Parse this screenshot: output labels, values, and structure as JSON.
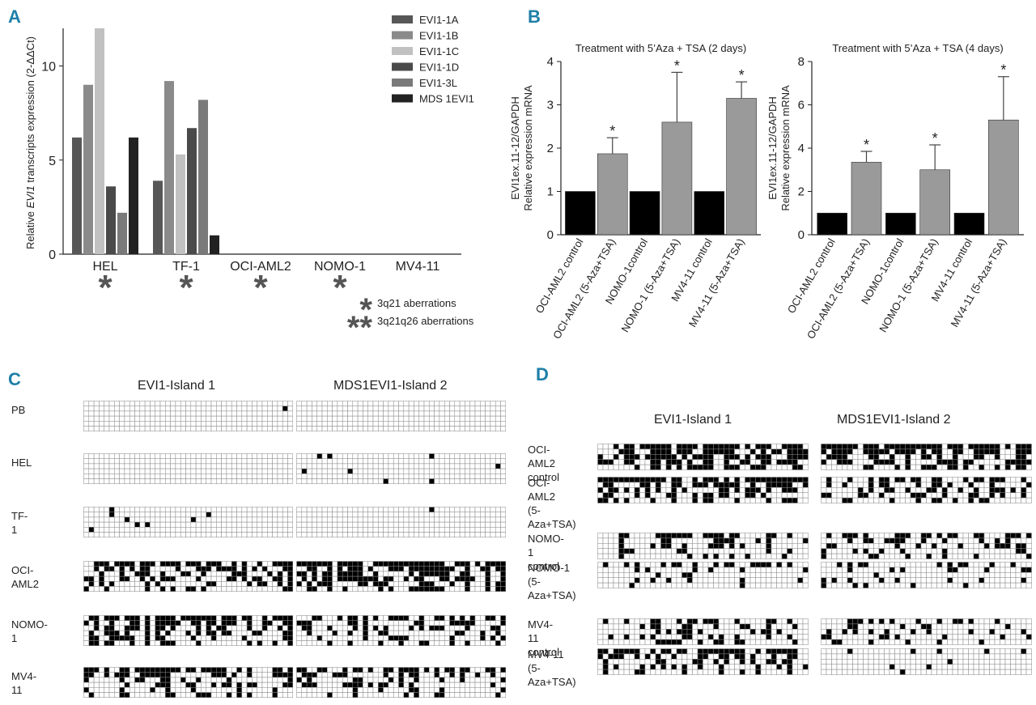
{
  "panels": {
    "a": "A",
    "b": "B",
    "c": "C",
    "d": "D"
  },
  "colors": {
    "accent": "#1e7fa8",
    "series": [
      "#575757",
      "#8a8a8a",
      "#c1c1c1",
      "#4a4a4a",
      "#7a7a7a",
      "#222222"
    ],
    "control_bar": "#000000",
    "treated_bar": "#9a9a9a",
    "asterisk": "#555555"
  },
  "chart_data": [
    {
      "id": "A",
      "type": "bar",
      "ylabel": "Relative EVI1 transcripts expression (2-ΔΔCt)",
      "ylabel_parts": [
        "Relative ",
        "EVI1",
        " transcripts expression (2-ΔΔCt)"
      ],
      "ylim": [
        0,
        12
      ],
      "yticks": [
        0,
        5,
        10
      ],
      "categories": [
        "HEL",
        "TF-1",
        "OCI-AML2",
        "NOMO-1",
        "MV4-11"
      ],
      "series": [
        {
          "name": "EVI1-1A",
          "values": [
            6.2,
            3.9,
            0,
            0,
            0
          ]
        },
        {
          "name": "EVI1-1B",
          "values": [
            9.0,
            9.2,
            0,
            0,
            0
          ]
        },
        {
          "name": "EVI1-1C",
          "values": [
            12.0,
            5.3,
            0,
            0,
            0
          ]
        },
        {
          "name": "EVI1-1D",
          "values": [
            3.6,
            6.7,
            0,
            0,
            0
          ]
        },
        {
          "name": "EVI1-3L",
          "values": [
            2.2,
            8.2,
            0,
            0,
            0
          ]
        },
        {
          "name": "MDS 1EVI1",
          "values": [
            6.2,
            1.0,
            0,
            0,
            0
          ]
        }
      ],
      "category_asterisks": [
        "*",
        "*",
        "*",
        "*",
        ""
      ],
      "annotation_legend": [
        {
          "symbol": "*",
          "label": "3q21 aberrations"
        },
        {
          "symbol": "**",
          "label": "3q21q26 aberrations"
        }
      ]
    },
    {
      "id": "B1",
      "type": "bar",
      "title": "Treatment with 5’Aza + TSA (2 days)",
      "ylabel_lines": [
        "EVI1ex.11-12/GAPDH",
        "Relative expression mRNA"
      ],
      "ylim": [
        0,
        4
      ],
      "yticks": [
        0,
        1,
        2,
        3,
        4
      ],
      "categories": [
        "OCI-AML2 control",
        "OCI-AML2 (5-Aza+TSA)",
        "NOMO-1control",
        "NOMO-1 (5-Aza+TSA)",
        "MV4-11 control",
        "MV4-11 (5-Aza+TSA)"
      ],
      "values": [
        1.0,
        1.87,
        1.0,
        2.6,
        1.0,
        3.15
      ],
      "errors": [
        0,
        0.37,
        0,
        1.15,
        0,
        0.38
      ],
      "significance": [
        "",
        "*",
        "",
        "*",
        "",
        "*"
      ]
    },
    {
      "id": "B2",
      "type": "bar",
      "title": "Treatment with 5’Aza + TSA (4 days)",
      "ylabel_lines": [
        "EVI1ex.11-12/GAPDH",
        "Relative expression mRNA"
      ],
      "ylim": [
        0,
        8
      ],
      "yticks": [
        0,
        2,
        4,
        6,
        8
      ],
      "categories": [
        "OCI-AML2 control",
        "OCI-AML2 (5-Aza+TSA)",
        "NOMO-1control",
        "NOMO-1 (5-Aza+TSA)",
        "MV4-11 control",
        "MV4-11 (5-Aza+TSA)"
      ],
      "values": [
        1.0,
        3.35,
        1.0,
        3.0,
        1.0,
        5.3
      ],
      "errors": [
        0,
        0.5,
        0,
        1.15,
        0,
        2.0
      ],
      "significance": [
        "",
        "*",
        "",
        "*",
        "",
        "*"
      ]
    }
  ],
  "panel_c": {
    "islands": [
      "EVI1-Island 1",
      "MDS1EVI1-Island 2"
    ],
    "rows": [
      {
        "label": "PB",
        "density": [
          0.01,
          0.02
        ]
      },
      {
        "label": "HEL",
        "density": [
          0.0,
          0.04
        ]
      },
      {
        "label": "TF-1",
        "density": [
          0.03,
          0.01
        ]
      },
      {
        "label": "OCI-AML2",
        "density": [
          0.42,
          0.72
        ]
      },
      {
        "label": "NOMO-1",
        "density": [
          0.6,
          0.32
        ]
      },
      {
        "label": "MV4-11",
        "density": [
          0.5,
          0.28
        ]
      }
    ]
  },
  "panel_d": {
    "islands": [
      "EVI1-Island 1",
      "MDS1EVI1-Island 2"
    ],
    "rows": [
      {
        "label": "OCI-AML2 control",
        "density": [
          0.62,
          0.78
        ]
      },
      {
        "label": "OCI-AML2 (5-Aza+TSA)",
        "density": [
          0.45,
          0.4
        ]
      },
      {
        "label": "NOMO-1 control",
        "density": [
          0.3,
          0.27
        ]
      },
      {
        "label": "NOMO-1 (5-Aza+TSA)",
        "density": [
          0.18,
          0.15
        ]
      },
      {
        "label": "MV4-11 control",
        "density": [
          0.25,
          0.2
        ]
      },
      {
        "label": "MV4-11 (5-Aza+TSA)",
        "density": [
          0.45,
          0.06
        ]
      }
    ]
  }
}
